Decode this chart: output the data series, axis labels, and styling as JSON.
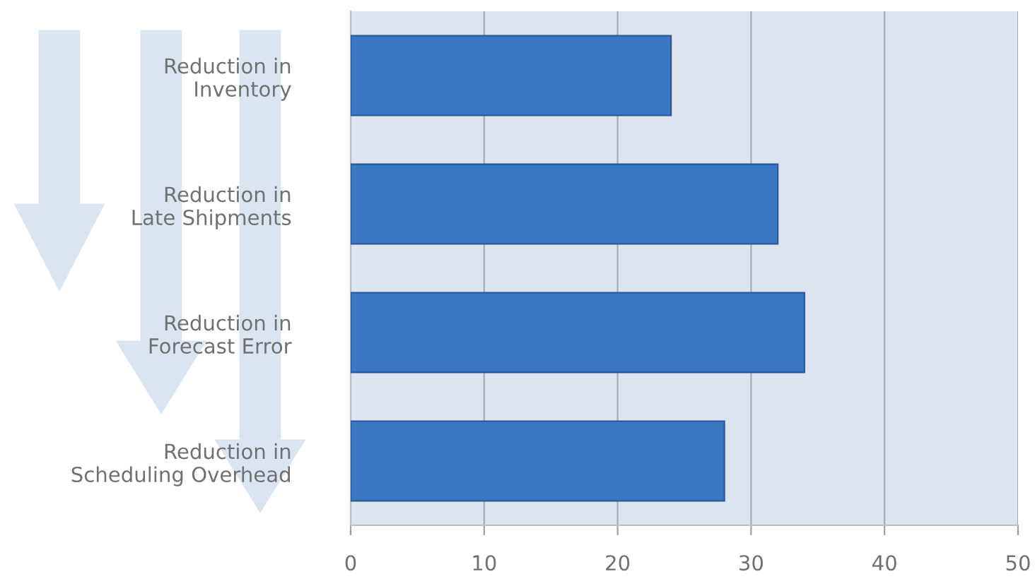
{
  "chart_data": {
    "type": "bar",
    "orientation": "horizontal",
    "categories": [
      "Reduction in\nInventory",
      "Reduction in\nLate Shipments",
      "Reduction in\nForecast Error",
      "Reduction in\nScheduling Overhead"
    ],
    "values": [
      24,
      32,
      34,
      28
    ],
    "color": "#3a78c4",
    "xlim": [
      0,
      50
    ],
    "xticks": [
      0,
      10,
      20,
      30,
      40,
      50
    ],
    "grid": "x"
  }
}
